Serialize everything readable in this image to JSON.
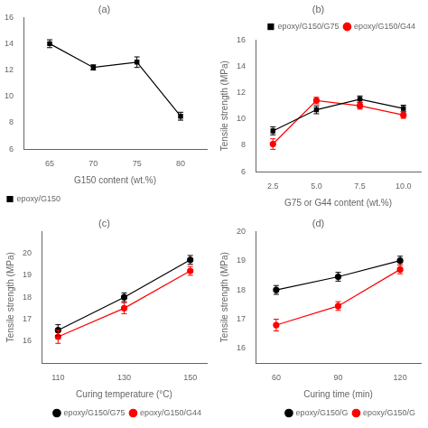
{
  "chart_data": [
    {
      "type": "line",
      "title": "(a)",
      "xlabel": "G150 content (wt.%)",
      "x": [
        65,
        70,
        75,
        80
      ],
      "series": [
        {
          "name": "epoxy/G150",
          "color": "black",
          "marker": "square",
          "values": [
            14.0,
            12.2,
            12.6,
            8.5
          ],
          "yerr": [
            0.3,
            0.2,
            0.4,
            0.3
          ]
        }
      ],
      "xlim": [
        62,
        83
      ],
      "xticks": [
        65,
        70,
        75,
        80
      ],
      "ylim": [
        6,
        16
      ],
      "yticks": [
        6,
        8,
        10,
        12,
        14,
        16
      ],
      "grid": false,
      "legend": "lower left"
    },
    {
      "type": "line",
      "title": "(b)",
      "xlabel": "G75 or G44 content (wt.%)",
      "ylabel": "Tensile strength (MPa)",
      "x": [
        2.5,
        5.0,
        7.5,
        10.0
      ],
      "series": [
        {
          "name": "epoxy/G150/G75",
          "color": "black",
          "marker": "square",
          "values": [
            9.1,
            10.7,
            11.5,
            10.8
          ],
          "yerr": [
            0.3,
            0.3,
            0.25,
            0.25
          ]
        },
        {
          "name": "epoxy/G150/G44",
          "color": "red",
          "marker": "circle",
          "values": [
            8.1,
            11.4,
            11.0,
            10.3
          ],
          "yerr": [
            0.4,
            0.25,
            0.25,
            0.25
          ]
        }
      ],
      "xlim": [
        1.5,
        11
      ],
      "xticks": [
        2.5,
        {
          "value": 5,
          "label": "5.0"
        },
        7.5,
        {
          "value": 10,
          "label": "10.0"
        }
      ],
      "ylim": [
        6,
        16
      ],
      "yticks": [
        6,
        8,
        10,
        12,
        14,
        16
      ],
      "grid": false,
      "legend": "upper right"
    },
    {
      "type": "line",
      "title": "(c)",
      "xlabel": "Curing temperature (°C)",
      "ylabel": "Tensile strength (MPa)",
      "x": [
        110,
        130,
        150
      ],
      "series": [
        {
          "name": "epoxy/G150/G75",
          "color": "black",
          "marker": "circle",
          "values": [
            16.5,
            18.0,
            19.7
          ],
          "yerr": [
            0.25,
            0.2,
            0.2
          ]
        },
        {
          "name": "epoxy/G150/G44",
          "color": "red",
          "marker": "circle",
          "values": [
            16.2,
            17.5,
            19.2
          ],
          "yerr": [
            0.3,
            0.25,
            0.2
          ]
        }
      ],
      "xlim": [
        105,
        155
      ],
      "xticks": [
        110,
        130,
        150
      ],
      "ylim": [
        15,
        21
      ],
      "yticks": [
        16,
        17,
        18,
        19,
        20
      ],
      "grid": false,
      "legend": "lower right"
    },
    {
      "type": "line",
      "title": "(d)",
      "xlabel": "Curing time (min)",
      "ylabel": "Tensile strength (MPa)",
      "x": [
        60,
        90,
        120
      ],
      "series": [
        {
          "name": "epoxy/G150/G",
          "color": "black",
          "marker": "circle",
          "values": [
            18.0,
            18.45,
            19.0
          ],
          "yerr": [
            0.15,
            0.15,
            0.15
          ]
        },
        {
          "name": "epoxy/G150/G",
          "color": "red",
          "marker": "circle",
          "values": [
            16.8,
            17.45,
            18.7
          ],
          "yerr": [
            0.2,
            0.15,
            0.15
          ]
        }
      ],
      "xlim": [
        50,
        130
      ],
      "xticks": [
        60,
        90,
        120
      ],
      "ylim": [
        15.5,
        20
      ],
      "yticks": [
        16,
        17,
        18,
        19,
        20
      ],
      "grid": false,
      "legend": "lower right"
    }
  ]
}
